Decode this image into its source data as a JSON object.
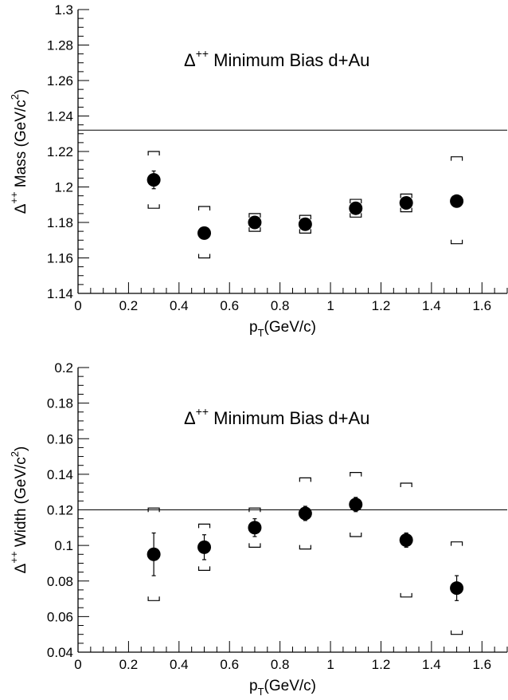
{
  "chart_data": [
    {
      "type": "scatter",
      "title_symbol": "Δ",
      "title_sup": "++",
      "title_rest": "Minimum Bias d+Au",
      "xlabel": {
        "main": "p",
        "sub": "T",
        "rest": "(GeV/c)"
      },
      "ylabel": {
        "pre": "Δ",
        "sup": "++",
        "mid": " Mass (GeV/c",
        "sup2": "2",
        "post": ")"
      },
      "xlim": [
        0,
        1.7
      ],
      "ylim": [
        1.14,
        1.3
      ],
      "x_ticks": [
        "0",
        "0.2",
        "0.4",
        "0.6",
        "0.8",
        "1",
        "1.2",
        "1.4",
        "1.6"
      ],
      "y_ticks": [
        "1.14",
        "1.16",
        "1.18",
        "1.2",
        "1.22",
        "1.24",
        "1.26",
        "1.28",
        "1.3"
      ],
      "reference_line": 1.232,
      "points": [
        {
          "x": 0.3,
          "y": 1.204,
          "stat_err": 0.005,
          "sys_low": 1.188,
          "sys_high": 1.22
        },
        {
          "x": 0.5,
          "y": 1.174,
          "stat_err": 0.002,
          "sys_low": 1.16,
          "sys_high": 1.189
        },
        {
          "x": 0.7,
          "y": 1.18,
          "stat_err": 0.003,
          "sys_low": 1.175,
          "sys_high": 1.185
        },
        {
          "x": 0.9,
          "y": 1.179,
          "stat_err": 0.003,
          "sys_low": 1.174,
          "sys_high": 1.184
        },
        {
          "x": 1.1,
          "y": 1.188,
          "stat_err": 0.003,
          "sys_low": 1.183,
          "sys_high": 1.193
        },
        {
          "x": 1.3,
          "y": 1.191,
          "stat_err": 0.003,
          "sys_low": 1.186,
          "sys_high": 1.196
        },
        {
          "x": 1.5,
          "y": 1.192,
          "stat_err": 0.002,
          "sys_low": 1.168,
          "sys_high": 1.217
        }
      ]
    },
    {
      "type": "scatter",
      "title_symbol": "Δ",
      "title_sup": "++",
      "title_rest": "Minimum Bias d+Au",
      "xlabel": {
        "main": "p",
        "sub": "T",
        "rest": "(GeV/c)"
      },
      "ylabel": {
        "pre": "Δ",
        "sup": "++",
        "mid": " Width (GeV/c",
        "sup2": "2",
        "post": ")"
      },
      "xlim": [
        0,
        1.7
      ],
      "ylim": [
        0.04,
        0.2
      ],
      "x_ticks": [
        "0",
        "0.2",
        "0.4",
        "0.6",
        "0.8",
        "1",
        "1.2",
        "1.4",
        "1.6"
      ],
      "y_ticks": [
        "0.04",
        "0.06",
        "0.08",
        "0.1",
        "0.12",
        "0.14",
        "0.16",
        "0.18",
        "0.2"
      ],
      "reference_line": 0.12,
      "points": [
        {
          "x": 0.3,
          "y": 0.095,
          "stat_err": 0.012,
          "sys_low": 0.069,
          "sys_high": 0.121
        },
        {
          "x": 0.5,
          "y": 0.099,
          "stat_err": 0.007,
          "sys_low": 0.086,
          "sys_high": 0.112
        },
        {
          "x": 0.7,
          "y": 0.11,
          "stat_err": 0.005,
          "sys_low": 0.099,
          "sys_high": 0.121
        },
        {
          "x": 0.9,
          "y": 0.118,
          "stat_err": 0.004,
          "sys_low": 0.098,
          "sys_high": 0.138
        },
        {
          "x": 1.1,
          "y": 0.123,
          "stat_err": 0.004,
          "sys_low": 0.105,
          "sys_high": 0.141
        },
        {
          "x": 1.3,
          "y": 0.103,
          "stat_err": 0.004,
          "sys_low": 0.071,
          "sys_high": 0.135
        },
        {
          "x": 1.5,
          "y": 0.076,
          "stat_err": 0.007,
          "sys_low": 0.05,
          "sys_high": 0.102
        }
      ]
    }
  ]
}
